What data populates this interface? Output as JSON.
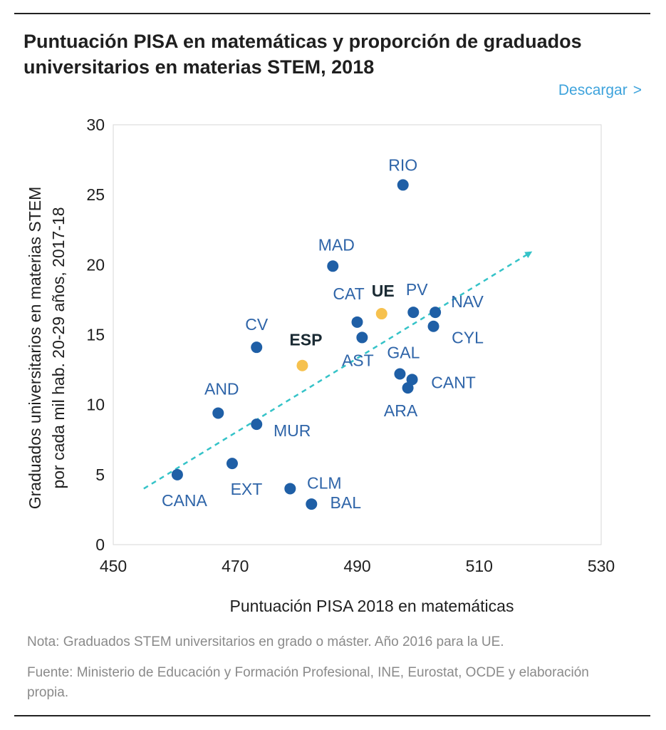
{
  "header": {
    "title": "Puntuación PISA en matemáticas y proporción de graduados universitarios en materias STEM, 2018",
    "download_label": "Descargar",
    "download_chevron": ">"
  },
  "chart_data": {
    "type": "scatter",
    "xlabel": "Puntuación PISA 2018 en matemáticas",
    "ylabel_lines": [
      "Graduados universitarios en materias STEM",
      "por cada mil hab. 20-29 años, 2017-18"
    ],
    "xlim": [
      450,
      530
    ],
    "ylim": [
      0,
      30
    ],
    "xticks": [
      450,
      470,
      490,
      510,
      530
    ],
    "yticks": [
      0,
      5,
      10,
      15,
      20,
      25,
      30
    ],
    "grid": false,
    "colors": {
      "region": "#1f5fa6",
      "highlight": "#f6c14e",
      "label": "#2e64a8",
      "trend": "#35c3c8"
    },
    "points": [
      {
        "label": "RIO",
        "x": 497.5,
        "y": 25.7,
        "highlight": false,
        "bold": false
      },
      {
        "label": "MAD",
        "x": 486,
        "y": 19.9,
        "highlight": false,
        "bold": false
      },
      {
        "label": "CAT",
        "x": 490,
        "y": 15.9,
        "highlight": false,
        "bold": false
      },
      {
        "label": "UE",
        "x": 494,
        "y": 16.5,
        "highlight": true,
        "bold": true
      },
      {
        "label": "PV",
        "x": 499.2,
        "y": 16.6,
        "highlight": false,
        "bold": false
      },
      {
        "label": "NAV",
        "x": 502.8,
        "y": 16.6,
        "highlight": false,
        "bold": false
      },
      {
        "label": "CYL",
        "x": 502.5,
        "y": 15.6,
        "highlight": false,
        "bold": false
      },
      {
        "label": "CV",
        "x": 473.5,
        "y": 14.1,
        "highlight": false,
        "bold": false
      },
      {
        "label": "ESP",
        "x": 481,
        "y": 12.8,
        "highlight": true,
        "bold": true
      },
      {
        "label": "AST",
        "x": 490.8,
        "y": 14.8,
        "highlight": false,
        "bold": false
      },
      {
        "label": "GAL",
        "x": 497,
        "y": 12.2,
        "highlight": false,
        "bold": false
      },
      {
        "label": "CANT",
        "x": 499,
        "y": 11.8,
        "highlight": false,
        "bold": false
      },
      {
        "label": "ARA",
        "x": 498.3,
        "y": 11.2,
        "highlight": false,
        "bold": false
      },
      {
        "label": "AND",
        "x": 467.2,
        "y": 9.4,
        "highlight": false,
        "bold": false
      },
      {
        "label": "MUR",
        "x": 473.5,
        "y": 8.6,
        "highlight": false,
        "bold": false
      },
      {
        "label": "EXT",
        "x": 469.5,
        "y": 5.8,
        "highlight": false,
        "bold": false
      },
      {
        "label": "CANA",
        "x": 460.5,
        "y": 5.0,
        "highlight": false,
        "bold": false
      },
      {
        "label": "CLM",
        "x": 479,
        "y": 4.0,
        "highlight": false,
        "bold": false
      },
      {
        "label": "BAL",
        "x": 482.5,
        "y": 2.9,
        "highlight": false,
        "bold": false
      }
    ],
    "trend_line": {
      "start": [
        455,
        4.0
      ],
      "end": [
        518.5,
        20.9
      ],
      "style": "dashed-arrow"
    }
  },
  "notes": [
    "Nota: Graduados STEM universitarios en grado o máster. Año  2016 para la UE.",
    "Fuente: Ministerio de Educación y Formación Profesional, INE, Eurostat, OCDE y elaboración propia."
  ]
}
